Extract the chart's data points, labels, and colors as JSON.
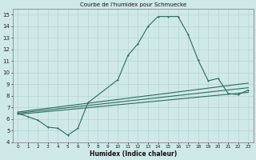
{
  "title": "Courbe de l'humidex pour Schmuecke",
  "xlabel": "Humidex (Indice chaleur)",
  "xlim": [
    -0.5,
    23.5
  ],
  "ylim": [
    4,
    15.5
  ],
  "yticks": [
    4,
    5,
    6,
    7,
    8,
    9,
    10,
    11,
    12,
    13,
    14,
    15
  ],
  "xticks": [
    0,
    1,
    2,
    3,
    4,
    5,
    6,
    7,
    8,
    9,
    10,
    11,
    12,
    13,
    14,
    15,
    16,
    17,
    18,
    19,
    20,
    21,
    22,
    23
  ],
  "xtick_labels": [
    "0",
    "1",
    "2",
    "3",
    "4",
    "5",
    "6",
    "7",
    "8",
    "9",
    "10",
    "11",
    "12",
    "13",
    "14",
    "15",
    "16",
    "17",
    "18",
    "19",
    "20",
    "21",
    "22",
    "23"
  ],
  "bg_color": "#cfe8e8",
  "line_color": "#2a6b60",
  "grid_color": "#b8d4d4",
  "line1_x": [
    0,
    1,
    2,
    3,
    4,
    5,
    6,
    7,
    10,
    11,
    12,
    13,
    14,
    15,
    16,
    17,
    18,
    19,
    20,
    21,
    22,
    23
  ],
  "line1_y": [
    6.5,
    6.2,
    5.9,
    5.3,
    5.2,
    4.6,
    5.2,
    7.4,
    9.4,
    11.5,
    12.5,
    14.0,
    14.85,
    14.85,
    14.85,
    13.3,
    11.1,
    9.3,
    9.5,
    8.2,
    8.1,
    8.5
  ],
  "line2_x": [
    0,
    23
  ],
  "line2_y": [
    6.4,
    8.3
  ],
  "line3_x": [
    0,
    23
  ],
  "line3_y": [
    6.6,
    9.1
  ],
  "line4_x": [
    0,
    23
  ],
  "line4_y": [
    6.5,
    8.7
  ]
}
